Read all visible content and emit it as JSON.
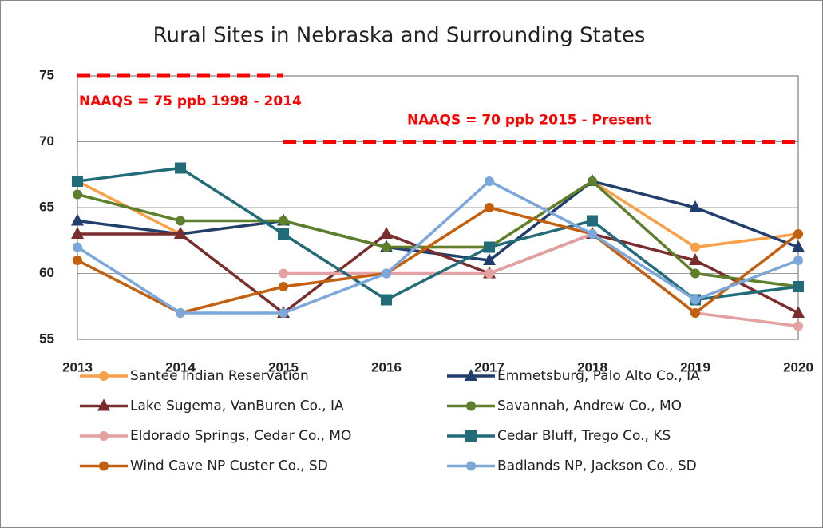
{
  "chart_data": {
    "type": "line",
    "title": "Rural Sites in Nebraska and Surrounding States",
    "x": [
      2013,
      2014,
      2015,
      2016,
      2017,
      2018,
      2019,
      2020
    ],
    "xlim": [
      2013,
      2020
    ],
    "xticks": [
      2013,
      2014,
      2015,
      2016,
      2017,
      2018,
      2019,
      2020
    ],
    "ylim": [
      55,
      75
    ],
    "yticks": [
      55,
      60,
      65,
      70,
      75
    ],
    "grid": true,
    "reference_lines": [
      {
        "label": "NAAQS = 75 ppb 1998 - 2014",
        "value": 75,
        "x": [
          2013,
          2015
        ],
        "color": "#ff0000"
      },
      {
        "label": "NAAQS = 70 ppb 2015 - Present",
        "value": 70,
        "x": [
          2015,
          2020
        ],
        "color": "#ff0000"
      }
    ],
    "series": [
      {
        "name": "Santee Indian Reservation",
        "color": "#f9a04b",
        "marker": "circle",
        "values": [
          67,
          63,
          64,
          62,
          62,
          67,
          62,
          63
        ]
      },
      {
        "name": "Emmetsburg, Palo Alto Co., IA",
        "color": "#213f6c",
        "marker": "triangle",
        "values": [
          64,
          63,
          64,
          62,
          61,
          67,
          65,
          62
        ]
      },
      {
        "name": "Lake Sugema, VanBuren Co., IA",
        "color": "#7a2d2d",
        "marker": "triangle",
        "values": [
          63,
          63,
          57,
          63,
          60,
          63,
          61,
          57
        ]
      },
      {
        "name": "Savannah, Andrew Co., MO",
        "color": "#5e7f2b",
        "marker": "circle",
        "values": [
          66,
          64,
          64,
          62,
          62,
          67,
          60,
          59
        ]
      },
      {
        "name": "Eldorado Springs, Cedar Co., MO",
        "color": "#e3a1a1",
        "marker": "circle",
        "values": [
          null,
          null,
          60,
          60,
          60,
          63,
          57,
          56
        ]
      },
      {
        "name": "Cedar Bluff, Trego Co., KS",
        "color": "#226b79",
        "marker": "square",
        "values": [
          67,
          68,
          63,
          58,
          62,
          64,
          58,
          59
        ]
      },
      {
        "name": "Wind Cave NP Custer Co., SD",
        "color": "#c2600f",
        "marker": "circle",
        "values": [
          61,
          57,
          59,
          60,
          65,
          63,
          57,
          63
        ]
      },
      {
        "name": "Badlands NP, Jackson Co., SD",
        "color": "#7ba7da",
        "marker": "circle",
        "values": [
          62,
          57,
          57,
          60,
          67,
          63,
          58,
          61
        ]
      }
    ]
  }
}
